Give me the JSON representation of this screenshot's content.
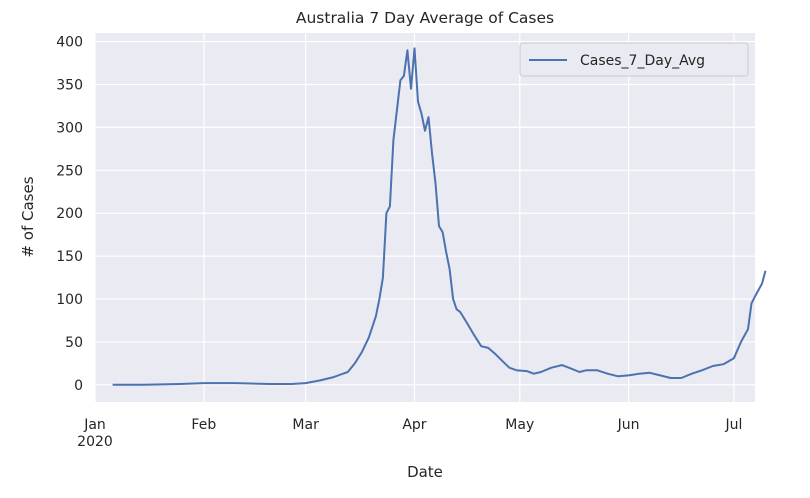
{
  "chart_data": {
    "type": "line",
    "title": "Australia 7 Day Average of Cases",
    "xlabel": "Date",
    "ylabel": "# of Cases",
    "x_tick_labels": [
      {
        "date": "2020-01-01",
        "label": "Jan",
        "sublabel": "2020"
      },
      {
        "date": "2020-02-01",
        "label": "Feb"
      },
      {
        "date": "2020-03-01",
        "label": "Mar"
      },
      {
        "date": "2020-04-01",
        "label": "Apr"
      },
      {
        "date": "2020-05-01",
        "label": "May"
      },
      {
        "date": "2020-06-01",
        "label": "Jun"
      },
      {
        "date": "2020-07-01",
        "label": "Jul"
      }
    ],
    "xlim": [
      "2020-01-01",
      "2020-07-07"
    ],
    "ylim": [
      -20,
      410
    ],
    "y_ticks": [
      0,
      50,
      100,
      150,
      200,
      250,
      300,
      350,
      400
    ],
    "grid": true,
    "background": "#eaeaf2",
    "grid_color": "#ffffff",
    "legend_position": "top-right",
    "series": [
      {
        "name": "Cases_7_Day_Avg",
        "color": "#4c72b0",
        "points": [
          [
            "2020-01-06",
            0
          ],
          [
            "2020-01-15",
            0
          ],
          [
            "2020-01-25",
            1
          ],
          [
            "2020-02-01",
            2
          ],
          [
            "2020-02-10",
            2
          ],
          [
            "2020-02-20",
            1
          ],
          [
            "2020-02-26",
            1
          ],
          [
            "2020-03-01",
            2
          ],
          [
            "2020-03-05",
            5
          ],
          [
            "2020-03-09",
            9
          ],
          [
            "2020-03-11",
            12
          ],
          [
            "2020-03-13",
            15
          ],
          [
            "2020-03-15",
            25
          ],
          [
            "2020-03-17",
            38
          ],
          [
            "2020-03-19",
            55
          ],
          [
            "2020-03-21",
            80
          ],
          [
            "2020-03-22",
            100
          ],
          [
            "2020-03-23",
            125
          ],
          [
            "2020-03-24",
            200
          ],
          [
            "2020-03-25",
            208
          ],
          [
            "2020-03-26",
            285
          ],
          [
            "2020-03-27",
            320
          ],
          [
            "2020-03-28",
            355
          ],
          [
            "2020-03-29",
            360
          ],
          [
            "2020-03-30",
            390
          ],
          [
            "2020-03-31",
            345
          ],
          [
            "2020-04-01",
            392
          ],
          [
            "2020-04-02",
            330
          ],
          [
            "2020-04-03",
            316
          ],
          [
            "2020-04-04",
            296
          ],
          [
            "2020-04-05",
            312
          ],
          [
            "2020-04-06",
            270
          ],
          [
            "2020-04-07",
            235
          ],
          [
            "2020-04-08",
            185
          ],
          [
            "2020-04-09",
            178
          ],
          [
            "2020-04-10",
            155
          ],
          [
            "2020-04-11",
            135
          ],
          [
            "2020-04-12",
            100
          ],
          [
            "2020-04-13",
            88
          ],
          [
            "2020-04-14",
            85
          ],
          [
            "2020-04-16",
            72
          ],
          [
            "2020-04-18",
            58
          ],
          [
            "2020-04-20",
            45
          ],
          [
            "2020-04-22",
            43
          ],
          [
            "2020-04-24",
            36
          ],
          [
            "2020-04-26",
            28
          ],
          [
            "2020-04-28",
            20
          ],
          [
            "2020-04-30",
            17
          ],
          [
            "2020-05-03",
            16
          ],
          [
            "2020-05-05",
            13
          ],
          [
            "2020-05-07",
            15
          ],
          [
            "2020-05-10",
            20
          ],
          [
            "2020-05-13",
            23
          ],
          [
            "2020-05-15",
            20
          ],
          [
            "2020-05-18",
            15
          ],
          [
            "2020-05-20",
            17
          ],
          [
            "2020-05-23",
            17
          ],
          [
            "2020-05-26",
            13
          ],
          [
            "2020-05-29",
            10
          ],
          [
            "2020-06-01",
            11
          ],
          [
            "2020-06-04",
            13
          ],
          [
            "2020-06-07",
            14
          ],
          [
            "2020-06-10",
            11
          ],
          [
            "2020-06-13",
            8
          ],
          [
            "2020-06-16",
            8
          ],
          [
            "2020-06-19",
            13
          ],
          [
            "2020-06-22",
            17
          ],
          [
            "2020-06-25",
            22
          ],
          [
            "2020-06-28",
            24
          ],
          [
            "2020-07-01",
            31
          ],
          [
            "2020-07-03",
            50
          ],
          [
            "2020-07-05",
            65
          ],
          [
            "2020-07-06",
            95
          ],
          [
            "2020-07-07",
            103
          ],
          [
            "2020-07-09",
            118
          ],
          [
            "2020-07-10",
            133
          ]
        ]
      }
    ]
  }
}
